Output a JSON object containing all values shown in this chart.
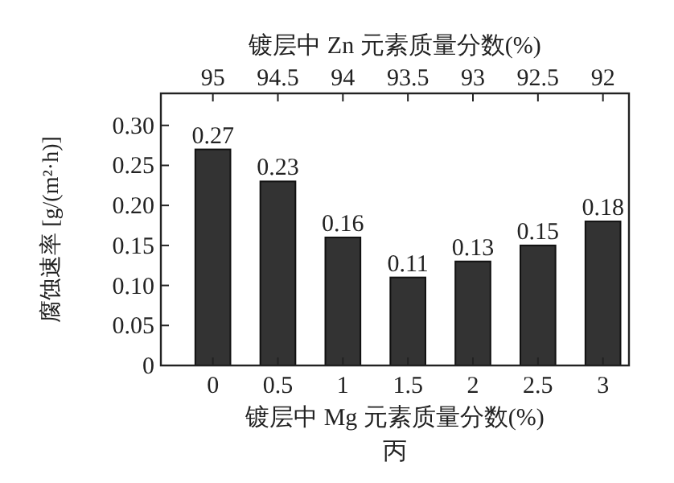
{
  "chart_data": {
    "type": "bar",
    "x": [
      0,
      0.5,
      1,
      1.5,
      2,
      2.5,
      3
    ],
    "values": [
      0.27,
      0.23,
      0.16,
      0.11,
      0.13,
      0.15,
      0.18
    ],
    "color": "#333333",
    "data_labels": true,
    "xlim": [
      -0.4,
      3.2
    ],
    "xticks": [
      0,
      0.5,
      1,
      1.5,
      2,
      2.5,
      3
    ],
    "x2lim": [
      95.4,
      91.8
    ],
    "x2ticks": [
      95,
      94.5,
      94,
      93.5,
      93,
      92.5,
      92
    ],
    "ylim": [
      0,
      0.34
    ],
    "yticks": [
      {
        "value": 0,
        "label": "0"
      },
      {
        "value": 0.05,
        "label": "0.05"
      },
      {
        "value": 0.1,
        "label": "0.10"
      },
      {
        "value": 0.15,
        "label": "0.15"
      },
      {
        "value": 0.2,
        "label": "0.20"
      },
      {
        "value": 0.25,
        "label": "0.25"
      },
      {
        "value": 0.3,
        "label": "0.30"
      }
    ],
    "xlabel": "镀层中 Mg 元素质量分数(%)",
    "x2label": "镀层中 Zn 元素质量分数(%)",
    "ylabel": "腐蚀速率 [g/(m²·h)]",
    "annotations": [
      "丙"
    ]
  }
}
